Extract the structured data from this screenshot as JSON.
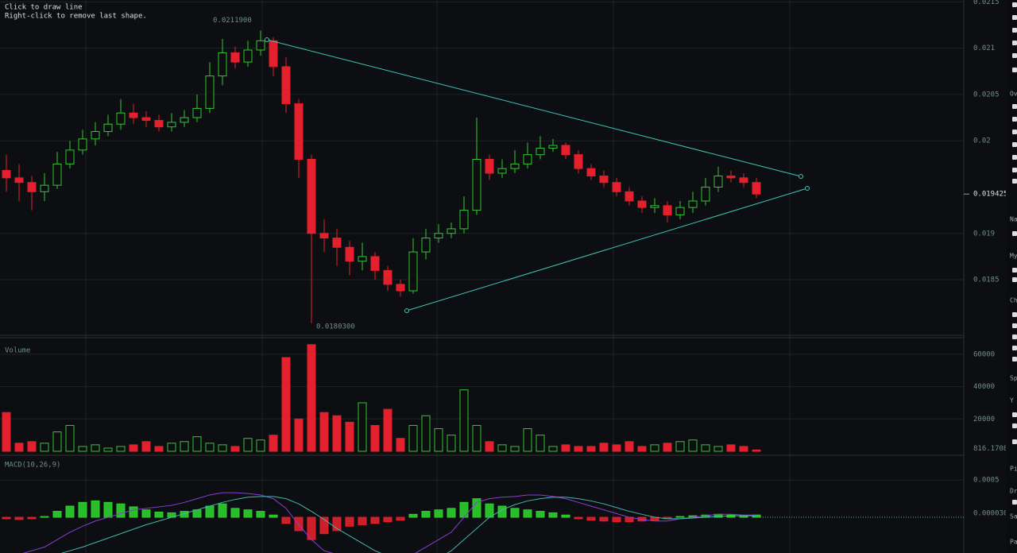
{
  "ui": {
    "hints": [
      "Click to draw line",
      "Right-click to remove last shape."
    ],
    "sidebar": [
      "Ov",
      "Na",
      "My",
      "Ch",
      "Sp",
      "Y",
      "Pi",
      "Dr",
      "Sa",
      "Pa"
    ]
  },
  "chart_data": [
    {
      "type": "candlestick",
      "up_color": "#32c832",
      "down_color": "#e3202b",
      "ylim": [
        0.0179,
        0.02152
      ],
      "yticks": [
        0.0185,
        0.019,
        0.02,
        0.0205,
        0.021,
        0.0215
      ],
      "grid": true,
      "annotations": [
        {
          "value": 0.02119,
          "label": "0.0211900"
        },
        {
          "value": 0.01803,
          "label": "0.0180300"
        },
        {
          "value": 0.019425,
          "label": "0.0194250"
        }
      ],
      "open": [
        0.01968,
        0.0196,
        0.01955,
        0.01945,
        0.01952,
        0.01975,
        0.0199,
        0.02002,
        0.0201,
        0.02018,
        0.0203,
        0.02025,
        0.02022,
        0.02015,
        0.0202,
        0.02025,
        0.02035,
        0.0207,
        0.02095,
        0.02085,
        0.02098,
        0.02108,
        0.0208,
        0.0204,
        0.0198,
        0.019,
        0.01895,
        0.01885,
        0.0187,
        0.01875,
        0.0186,
        0.01845,
        0.01838,
        0.0188,
        0.01895,
        0.019,
        0.01905,
        0.01925,
        0.0198,
        0.01965,
        0.0197,
        0.01975,
        0.01985,
        0.01992,
        0.01995,
        0.01985,
        0.0197,
        0.01962,
        0.01955,
        0.01945,
        0.01935,
        0.01928,
        0.0193,
        0.0192,
        0.01928,
        0.01935,
        0.0195,
        0.01962,
        0.0196,
        0.01955
      ],
      "high": [
        0.01985,
        0.01975,
        0.01962,
        0.01965,
        0.01988,
        0.02,
        0.02012,
        0.0202,
        0.02028,
        0.02045,
        0.0204,
        0.02032,
        0.02028,
        0.0203,
        0.02033,
        0.0205,
        0.02085,
        0.0211,
        0.02102,
        0.02108,
        0.02119,
        0.02112,
        0.0209,
        0.02045,
        0.01985,
        0.01915,
        0.01905,
        0.01892,
        0.0189,
        0.0188,
        0.01865,
        0.0185,
        0.01895,
        0.01905,
        0.0191,
        0.01912,
        0.0194,
        0.02025,
        0.01985,
        0.0198,
        0.0199,
        0.01998,
        0.02005,
        0.02002,
        0.01998,
        0.0199,
        0.01975,
        0.01968,
        0.0196,
        0.0195,
        0.0194,
        0.01938,
        0.01935,
        0.01935,
        0.01945,
        0.0196,
        0.01972,
        0.01968,
        0.01965,
        0.0196
      ],
      "low": [
        0.01945,
        0.01935,
        0.01925,
        0.01935,
        0.01948,
        0.0197,
        0.01985,
        0.01995,
        0.02005,
        0.02012,
        0.02018,
        0.02015,
        0.0201,
        0.0201,
        0.02015,
        0.0202,
        0.0203,
        0.0206,
        0.02078,
        0.0208,
        0.02092,
        0.0207,
        0.0203,
        0.0196,
        0.01803,
        0.0188,
        0.01865,
        0.01855,
        0.0186,
        0.0185,
        0.01838,
        0.01832,
        0.01835,
        0.01872,
        0.0189,
        0.01895,
        0.019,
        0.0192,
        0.01958,
        0.0196,
        0.01965,
        0.0197,
        0.0198,
        0.01988,
        0.0198,
        0.01965,
        0.01958,
        0.0195,
        0.0194,
        0.0193,
        0.01922,
        0.01922,
        0.01912,
        0.01915,
        0.01922,
        0.0193,
        0.01945,
        0.01955,
        0.0195,
        0.01938
      ],
      "close": [
        0.0196,
        0.01955,
        0.01945,
        0.01952,
        0.01975,
        0.0199,
        0.02002,
        0.0201,
        0.02018,
        0.0203,
        0.02025,
        0.02022,
        0.02015,
        0.0202,
        0.02025,
        0.02035,
        0.0207,
        0.02095,
        0.02085,
        0.02098,
        0.02108,
        0.0208,
        0.0204,
        0.0198,
        0.019,
        0.01895,
        0.01885,
        0.0187,
        0.01875,
        0.0186,
        0.01845,
        0.01838,
        0.0188,
        0.01895,
        0.019,
        0.01905,
        0.01925,
        0.0198,
        0.01965,
        0.0197,
        0.01975,
        0.01985,
        0.01992,
        0.01995,
        0.01985,
        0.0197,
        0.01962,
        0.01955,
        0.01945,
        0.01935,
        0.01928,
        0.0193,
        0.0192,
        0.01928,
        0.01935,
        0.0195,
        0.01962,
        0.0196,
        0.01955,
        0.019425
      ]
    },
    {
      "type": "volume",
      "title": "Volume",
      "ylim": [
        0,
        68800
      ],
      "yticks": [
        20000,
        40000,
        60000
      ],
      "current": 816.17083,
      "grid": true,
      "values": [
        24000,
        5000,
        6000,
        5000,
        12000,
        16000,
        3000,
        4000,
        2000,
        3000,
        4000,
        6000,
        3000,
        5000,
        6000,
        9000,
        5000,
        4000,
        3000,
        8000,
        7000,
        10000,
        58000,
        20000,
        66000,
        24000,
        22000,
        18000,
        30000,
        16000,
        26000,
        8000,
        16000,
        22000,
        14000,
        10000,
        38000,
        16000,
        6000,
        4000,
        3000,
        14000,
        10000,
        3000,
        4000,
        3000,
        3000,
        5000,
        4000,
        6000,
        3000,
        4000,
        5000,
        6000,
        7000,
        4000,
        3000,
        4000,
        3000,
        816.17083
      ]
    },
    {
      "type": "macd",
      "title": "MACD(10,26,9)",
      "ylim": [
        -0.00048,
        0.00078
      ],
      "yticks": [
        0.0005
      ],
      "current": 3.06e-05,
      "grid": true,
      "pos_color": "#2ecf2e",
      "neg_color": "#e3202b",
      "values": [
        -2e-05,
        -3e-05,
        -2e-05,
        1e-05,
        8e-05,
        0.00015,
        0.0002,
        0.00022,
        0.0002,
        0.00018,
        0.00014,
        0.0001,
        7e-05,
        6e-05,
        8e-05,
        0.0001,
        0.00015,
        0.00018,
        0.00012,
        0.0001,
        8e-05,
        3e-05,
        -8e-05,
        -0.00018,
        -0.0003,
        -0.00022,
        -0.00018,
        -0.00012,
        -0.0001,
        -8e-05,
        -6e-05,
        -4e-05,
        4e-05,
        8e-05,
        0.0001,
        0.00012,
        0.0002,
        0.00025,
        0.00018,
        0.00015,
        0.00012,
        0.0001,
        8e-05,
        6e-05,
        3e-05,
        -2e-05,
        -4e-05,
        -5e-05,
        -6e-05,
        -6e-05,
        -5e-05,
        -4e-05,
        -2e-05,
        1e-05,
        2e-05,
        3e-05,
        4e-05,
        3e-05,
        2e-05,
        3.06e-05
      ],
      "macd_line": {
        "color": "#8a3fd8",
        "values": [
          -0.0006,
          -0.0005,
          -0.00045,
          -0.0004,
          -0.0003,
          -0.0002,
          -0.00012,
          -5e-05,
          0.0,
          5e-05,
          0.0001,
          0.00012,
          0.00014,
          0.00016,
          0.0002,
          0.00025,
          0.0003,
          0.00033,
          0.00033,
          0.00032,
          0.0003,
          0.00025,
          0.00012,
          -0.0001,
          -0.0003,
          -0.00045,
          -0.0005,
          -0.0006,
          -0.0007,
          -0.0007,
          -0.0007,
          -0.00065,
          -0.0005,
          -0.0004,
          -0.0003,
          -0.0002,
          0.0,
          0.0002,
          0.00025,
          0.00027,
          0.00028,
          0.0003,
          0.0003,
          0.00028,
          0.00025,
          0.0002,
          0.00015,
          0.0001,
          5e-05,
          0.0,
          -3e-05,
          -5e-05,
          -5e-05,
          -2e-05,
          0.0,
          2e-05,
          4e-05,
          4e-05,
          3e-05,
          3e-05
        ]
      },
      "signal_line": {
        "color": "#3fb8b0",
        "values": [
          -0.0007,
          -0.00065,
          -0.0006,
          -0.00055,
          -0.0005,
          -0.00045,
          -0.0004,
          -0.00034,
          -0.00028,
          -0.00022,
          -0.00016,
          -0.0001,
          -5e-05,
          0.0,
          5e-05,
          0.0001,
          0.00015,
          0.0002,
          0.00024,
          0.00027,
          0.00028,
          0.00028,
          0.00025,
          0.00018,
          8e-05,
          -3e-05,
          -0.00015,
          -0.00025,
          -0.00035,
          -0.00045,
          -0.00052,
          -0.00058,
          -0.0006,
          -0.0006,
          -0.00055,
          -0.00045,
          -0.0003,
          -0.00015,
          0.0,
          0.0001,
          0.00017,
          0.00022,
          0.00025,
          0.00027,
          0.00027,
          0.00025,
          0.00022,
          0.00018,
          0.00013,
          8e-05,
          4e-05,
          0.0,
          -2e-05,
          -2e-05,
          -1e-05,
          0.0,
          1e-05,
          2e-05,
          2e-05,
          2e-05
        ]
      }
    }
  ]
}
